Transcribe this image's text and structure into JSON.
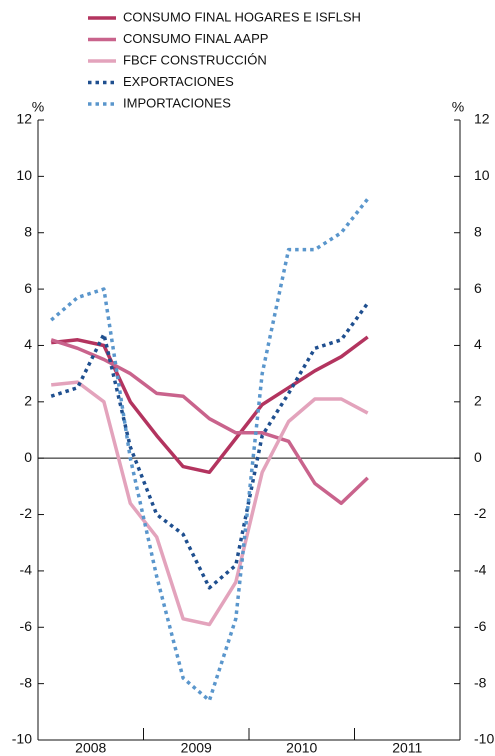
{
  "chart_data": {
    "type": "line",
    "unit_label": "%",
    "y2_unit_label": "%",
    "years": [
      "2008",
      "2009",
      "2010",
      "2011"
    ],
    "categories": [
      null,
      null,
      null,
      null,
      null,
      null,
      null,
      null,
      null,
      null,
      null,
      null,
      null
    ],
    "series": [
      {
        "name": "CONSUMO FINAL HOGARES E ISFLSH",
        "color": "#b3345f",
        "style": "solid",
        "values": [
          4.1,
          4.2,
          4.0,
          2.0,
          0.8,
          -0.3,
          -0.5,
          0.7,
          1.9,
          2.5,
          3.1,
          3.6,
          4.3
        ]
      },
      {
        "name": "CONSUMO FINAL AAPP",
        "color": "#c9638c",
        "style": "solid",
        "values": [
          4.2,
          3.9,
          3.5,
          3.0,
          2.3,
          2.2,
          1.4,
          0.9,
          0.9,
          0.6,
          -0.9,
          -1.6,
          -0.7
        ]
      },
      {
        "name": "FBCF CONSTRUCCIÓN",
        "color": "#e3a3bc",
        "style": "solid",
        "values": [
          2.6,
          2.7,
          2.0,
          -1.6,
          -2.8,
          -5.7,
          -5.9,
          -4.4,
          -0.5,
          1.3,
          2.1,
          2.1,
          1.6
        ]
      },
      {
        "name": "EXPORTACIONES",
        "color": "#1f4f8f",
        "style": "dotted",
        "values": [
          2.2,
          2.5,
          4.4,
          0.4,
          -2.0,
          -2.7,
          -4.6,
          -3.8,
          0.8,
          2.3,
          3.9,
          4.2,
          5.5
        ]
      },
      {
        "name": "IMPORTACIONES",
        "color": "#5a96cc",
        "style": "dotted",
        "values": [
          4.9,
          5.7,
          6.0,
          0.0,
          -4.2,
          -7.8,
          -8.6,
          -5.7,
          3.0,
          7.4,
          7.4,
          8.0,
          9.2
        ]
      }
    ],
    "ylim": [
      -10,
      12
    ],
    "yticks": [
      -10,
      -8,
      -6,
      -4,
      -2,
      0,
      2,
      4,
      6,
      8,
      10,
      12
    ],
    "y2lim": [
      -10,
      12
    ],
    "y2ticks": [
      -10,
      -8,
      -6,
      -4,
      -2,
      0,
      2,
      4,
      6,
      8,
      10,
      12
    ]
  }
}
